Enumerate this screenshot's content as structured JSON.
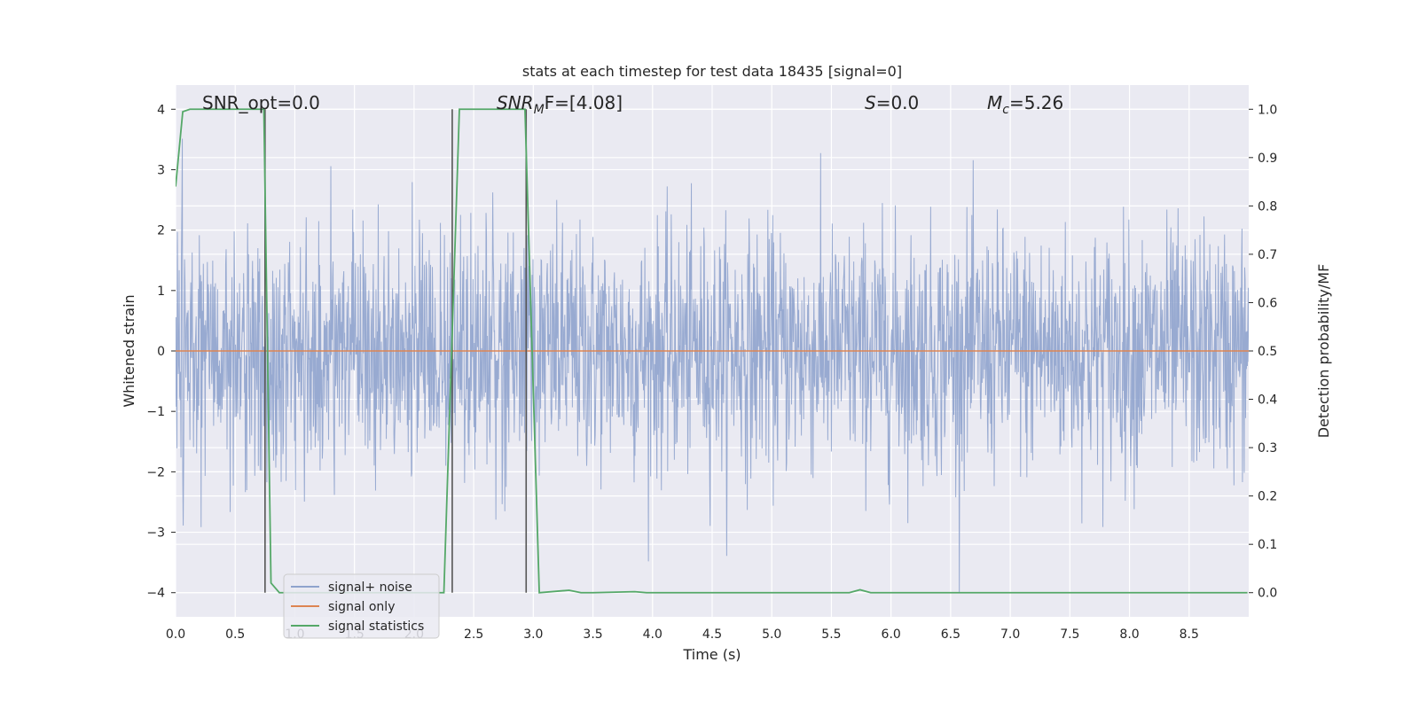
{
  "chart_data": {
    "type": "line",
    "title": "stats at each timestep for test data 18435 [signal=0]",
    "xlabel": "Time (s)",
    "ylabel_left": "Whitened strain",
    "ylabel_right": "Detection probability/MF",
    "xlim": [
      0.0,
      9.0
    ],
    "ylim_left": [
      -4.4,
      4.4
    ],
    "ylim_right": [
      -0.05,
      1.05
    ],
    "x_ticks": [
      "0.0",
      "0.5",
      "1.0",
      "1.5",
      "2.0",
      "2.5",
      "3.0",
      "3.5",
      "4.0",
      "4.5",
      "5.0",
      "5.5",
      "6.0",
      "6.5",
      "7.0",
      "7.5",
      "8.0",
      "8.5"
    ],
    "y_ticks_left": [
      "4",
      "3",
      "2",
      "1",
      "0",
      "−1",
      "−2",
      "−3",
      "−4"
    ],
    "y_ticks_right": [
      "1.0",
      "0.9",
      "0.8",
      "0.7",
      "0.6",
      "0.5",
      "0.4",
      "0.3",
      "0.2",
      "0.1",
      "0.0"
    ],
    "grid": true,
    "legend_position": "lower-left",
    "annotations": {
      "snr_opt": "SNR_opt=0.0",
      "snr_mf_main": "SNR",
      "snr_mf_sub": "M",
      "snr_mf_rest": "F=[4.08]",
      "s_italic": "S",
      "s_rest": "=0.0",
      "mc_italic": "M",
      "mc_sub": "c",
      "mc_rest": "=5.26"
    },
    "series": [
      {
        "name": "signal+ noise",
        "color": "#8fa3cd",
        "description": "whitened strain noise, approx. gaussian, typical |amplitude| within 1.5, peaks up to about ±4",
        "envelope_peak": 4.0,
        "envelope_band": 1.5
      },
      {
        "name": "signal only",
        "color": "#dd8452",
        "values_constant": 0.0
      },
      {
        "name": "signal statistics",
        "color": "#55a868",
        "x": [
          0.0,
          0.06,
          0.12,
          0.74,
          0.8,
          0.87,
          1.0,
          1.5,
          2.0,
          2.25,
          2.38,
          2.44,
          2.93,
          3.05,
          3.3,
          3.4,
          3.5,
          3.85,
          3.95,
          5.65,
          5.74,
          5.83,
          6.5,
          8.99
        ],
        "values": [
          0.84,
          0.995,
          1.0,
          1.0,
          0.02,
          0.0,
          0.0,
          0.0,
          0.0,
          0.0,
          1.0,
          1.0,
          1.0,
          0.0,
          0.005,
          0.0,
          0.0,
          0.002,
          0.0,
          0.0,
          0.006,
          0.0,
          0.0,
          0.0
        ]
      }
    ],
    "vertical_lines": [
      0.75,
      2.32,
      2.94
    ],
    "vertical_line_color": "#555555",
    "background_color": "#eaeaf2",
    "grid_color": "#ffffff"
  }
}
